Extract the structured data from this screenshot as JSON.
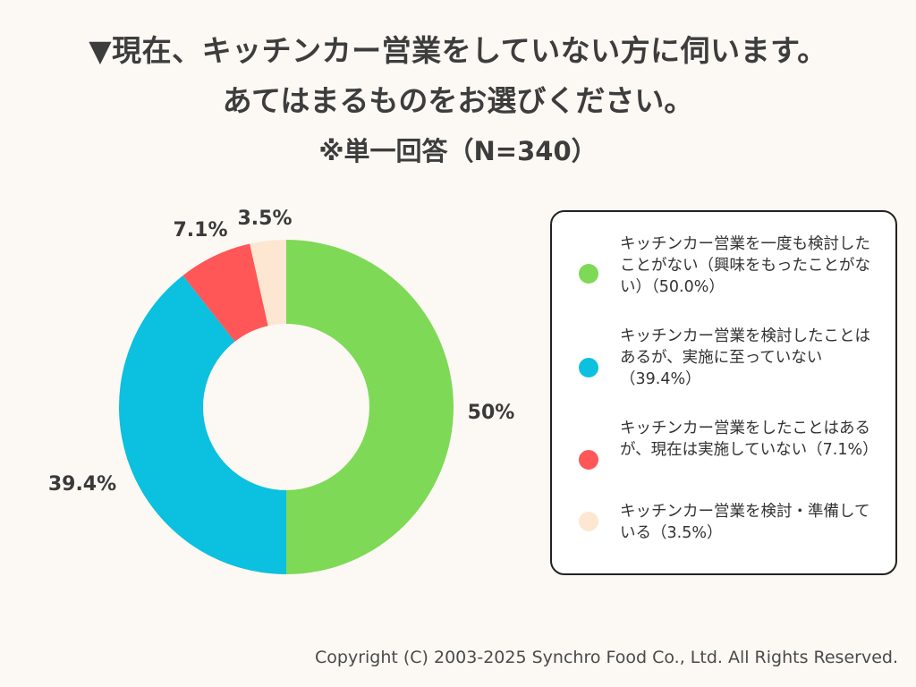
{
  "header": {
    "title_line1": "▼現在、キッチンカー営業をしていない方に伺います。",
    "title_line2": "あてはまるものをお選びください。",
    "subtitle": "※単一回答（N=340）"
  },
  "chart_data": {
    "type": "pie",
    "variant": "donut",
    "sample_size": 340,
    "unit": "%",
    "slices": [
      {
        "name": "キッチンカー営業を一度も検討したことがない（興味をもったことがない）（50.0%）",
        "value": 50.0,
        "label": "50%",
        "color": "#7ED957"
      },
      {
        "name": "キッチンカー営業を検討したことはあるが、実施に至っていない（39.4%）",
        "value": 39.4,
        "label": "39.4%",
        "color": "#0CC0DF"
      },
      {
        "name": "キッチンカー営業をしたことはあるが、現在は実施していない（7.1%）",
        "value": 7.1,
        "label": "7.1%",
        "color": "#FF5757"
      },
      {
        "name": "キッチンカー営業を検討・準備している（3.5%）",
        "value": 3.5,
        "label": "3.5%",
        "color": "#FDE7D2"
      }
    ],
    "legend_position": "right"
  },
  "footer": {
    "copyright": "Copyright (C) 2003-2025  Synchro Food Co., Ltd. All Rights Reserved."
  }
}
